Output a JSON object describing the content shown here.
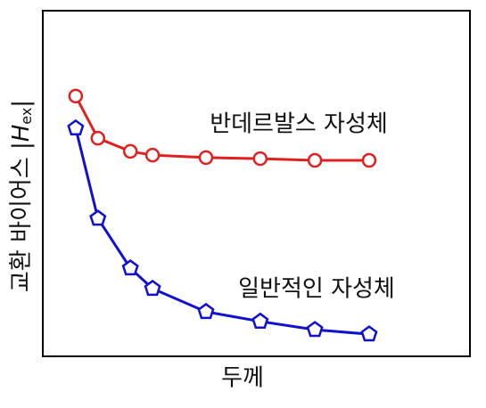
{
  "chart_data": {
    "type": "line",
    "x_label": "두께",
    "y_label_parts": [
      "교환 바이어스 |",
      "H",
      "ex",
      "|"
    ],
    "x": [
      7.7,
      12.9,
      20.5,
      25.7,
      38.2,
      50.9,
      63.7,
      76.4
    ],
    "xlim": [
      0,
      100
    ],
    "ylim": [
      0,
      100
    ],
    "series": [
      {
        "name": "반데르발스 자성체",
        "color": "#e02020",
        "marker": "circle",
        "values": [
          75.3,
          63.1,
          59.3,
          58.2,
          57.5,
          57.2,
          56.7,
          56.7
        ]
      },
      {
        "name": "일반적인 자성체",
        "color": "#1010d0",
        "marker": "pentagon",
        "values": [
          66.0,
          39.9,
          25.5,
          19.6,
          12.9,
          10.1,
          7.7,
          6.4
        ]
      }
    ]
  }
}
